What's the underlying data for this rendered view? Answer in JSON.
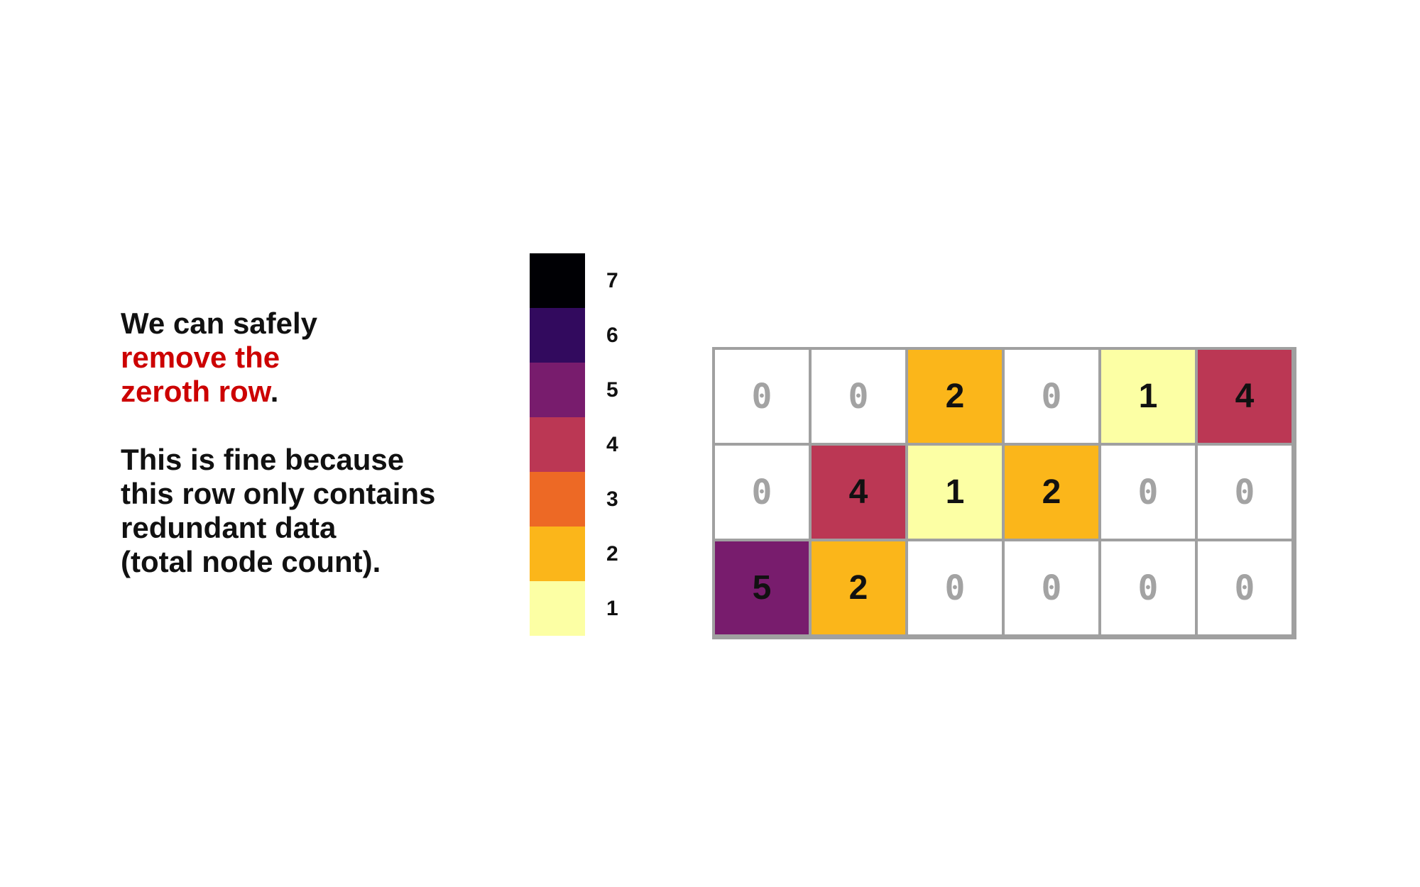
{
  "text": {
    "line1": "We can safely",
    "line2_highlight": "remove the",
    "line3_highlight": "zeroth row",
    "line3_tail": ".",
    "para2_line1": "This is fine because",
    "para2_line2": "this row only contains",
    "para2_line3": "redundant data",
    "para2_line4": "(total node count)."
  },
  "colors": {
    "text": "#111111",
    "highlight": "#cc0000",
    "grid_border": "#a0a0a0",
    "zero_text": "#a3a3a3"
  },
  "colorbar": [
    {
      "value": "7",
      "color": "#000004"
    },
    {
      "value": "6",
      "color": "#320a5e"
    },
    {
      "value": "5",
      "color": "#781c6d"
    },
    {
      "value": "4",
      "color": "#bb3754"
    },
    {
      "value": "3",
      "color": "#ed6925"
    },
    {
      "value": "2",
      "color": "#fbb61a"
    },
    {
      "value": "1",
      "color": "#fcffa4"
    }
  ],
  "chart_data": {
    "type": "heatmap",
    "rows": [
      [
        0,
        0,
        2,
        0,
        1,
        4
      ],
      [
        0,
        4,
        1,
        2,
        0,
        0
      ],
      [
        5,
        2,
        0,
        0,
        0,
        0
      ]
    ],
    "colorbar_range": [
      1,
      7
    ]
  }
}
